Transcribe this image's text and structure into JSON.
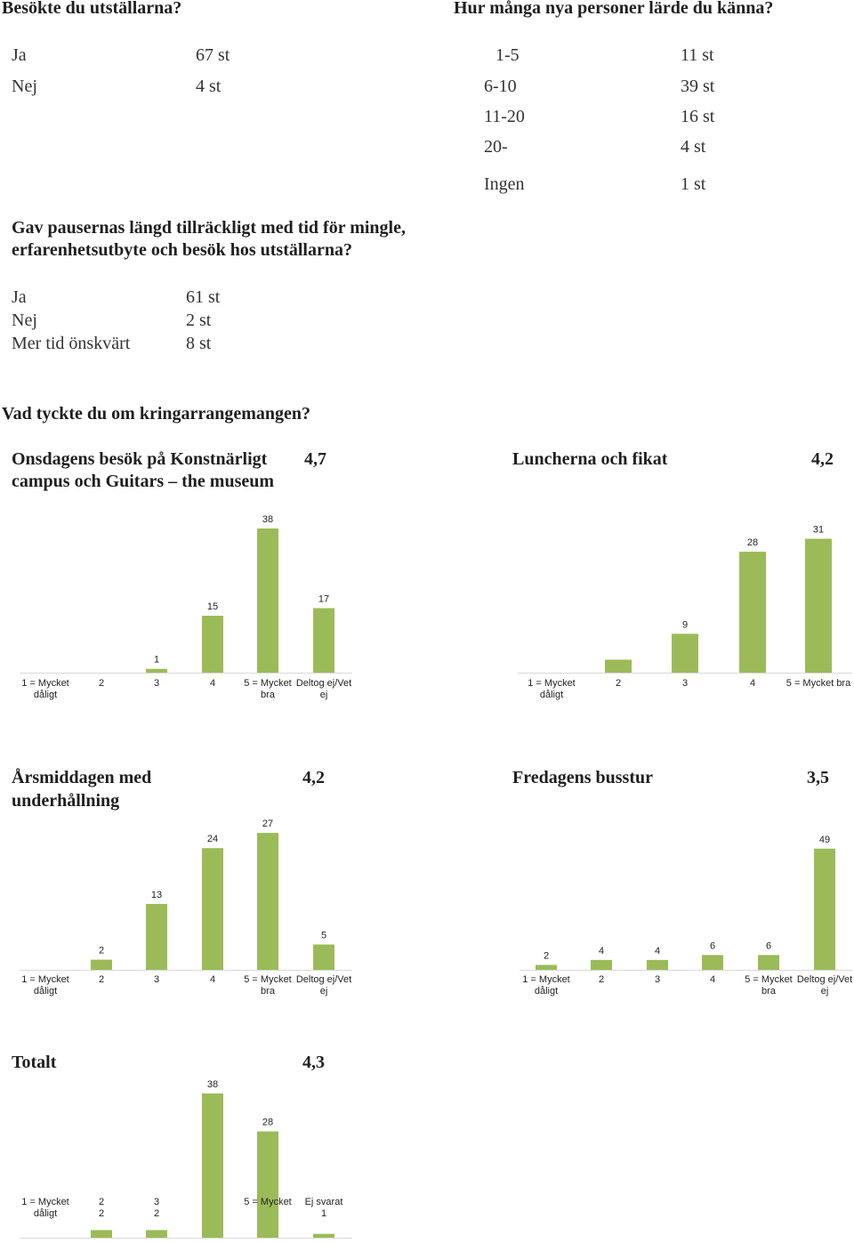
{
  "visited": {
    "question": "Besökte du utställarna?",
    "rows": [
      {
        "label": "Ja",
        "value": "67 st"
      },
      {
        "label": "Nej",
        "value": "4 st"
      }
    ]
  },
  "met": {
    "question": "Hur många nya personer lärde du känna?",
    "rows": [
      {
        "label": "1-5",
        "value": "11 st"
      },
      {
        "label": "6-10",
        "value": "39 st"
      },
      {
        "label": "11-20",
        "value": "16 st"
      },
      {
        "label": "20-",
        "value": "4 st"
      },
      {
        "label": "Ingen",
        "value": "1 st"
      }
    ]
  },
  "breaks": {
    "question_line1": "Gav pausernas längd tillräckligt med tid för mingle,",
    "question_line2": "erfarenhetsutbyte och besök hos utställarna?",
    "rows": [
      {
        "label": "Ja",
        "value": "61 st"
      },
      {
        "label": "Nej",
        "value": "2 st"
      },
      {
        "label": "Mer tid önskvärt",
        "value": "8 st"
      }
    ]
  },
  "section_title": "Vad tyckte du om kringarrangemangen?",
  "panels": [
    {
      "title_line1": "Onsdagens besök på Konstnärligt",
      "title_line2": "campus och Guitars – the museum",
      "score": "4,7"
    },
    {
      "title_line1": "Luncherna och fikat",
      "title_line2": "",
      "score": "4,2"
    },
    {
      "title_line1": "Årsmiddagen med",
      "title_line2": "underhållning",
      "score": "4,2"
    },
    {
      "title_line1": "Fredagens busstur",
      "title_line2": "",
      "score": "3,5"
    },
    {
      "title_line1": "Totalt",
      "title_line2": "",
      "score": "4,3"
    }
  ],
  "chart_data": [
    {
      "type": "bar",
      "title": "Onsdagens besök på Konstnärligt campus och Guitars – the museum",
      "categories": [
        [
          "1 = Mycket",
          "dåligt"
        ],
        [
          "2"
        ],
        [
          "3"
        ],
        [
          "4"
        ],
        [
          "5 = Mycket",
          "bra"
        ],
        [
          "Deltog ej/Vet",
          "ej"
        ]
      ],
      "values": [
        null,
        null,
        1,
        15,
        38,
        17
      ],
      "data_labels": [
        "",
        "",
        "1",
        "15",
        "38",
        "17"
      ],
      "color": "#9bbb59"
    },
    {
      "type": "bar",
      "title": "Luncherna och fikat",
      "categories": [
        [
          "1 = Mycket",
          "dåligt"
        ],
        [
          "2"
        ],
        [
          "3"
        ],
        [
          "4"
        ],
        [
          "5 = Mycket bra"
        ]
      ],
      "values": [
        null,
        3,
        9,
        28,
        31
      ],
      "data_labels": [
        "",
        "",
        "9",
        "28",
        "31"
      ],
      "color": "#9bbb59"
    },
    {
      "type": "bar",
      "title": "Årsmiddagen med underhållning",
      "categories": [
        [
          "1 = Mycket",
          "dåligt"
        ],
        [
          "2"
        ],
        [
          "3"
        ],
        [
          "4"
        ],
        [
          "5 = Mycket",
          "bra"
        ],
        [
          "Deltog ej/Vet",
          "ej"
        ]
      ],
      "values": [
        null,
        2,
        13,
        24,
        27,
        5
      ],
      "data_labels": [
        "",
        "2",
        "13",
        "24",
        "27",
        "5"
      ],
      "color": "#9bbb59"
    },
    {
      "type": "bar",
      "title": "Fredagens busstur",
      "categories": [
        [
          "1 = Mycket",
          "dåligt"
        ],
        [
          "2"
        ],
        [
          "3"
        ],
        [
          "4"
        ],
        [
          "5 = Mycket",
          "bra"
        ],
        [
          "Deltog ej/Vet",
          "ej"
        ]
      ],
      "values": [
        2,
        4,
        4,
        6,
        6,
        49
      ],
      "data_labels": [
        "2",
        "4",
        "4",
        "6",
        "6",
        "49"
      ],
      "color": "#9bbb59"
    },
    {
      "type": "bar",
      "title": "Totalt",
      "categories": [
        [
          "1 = Mycket",
          "dåligt"
        ],
        [
          "2",
          "2"
        ],
        [
          "3",
          "2"
        ],
        [
          ""
        ],
        [
          "5 = Mycket"
        ],
        [
          "Ej svarat",
          "1"
        ]
      ],
      "values": [
        null,
        2,
        2,
        38,
        28,
        1
      ],
      "data_labels": [
        "",
        "",
        "",
        "38",
        "28",
        ""
      ],
      "color": "#9bbb59"
    }
  ]
}
